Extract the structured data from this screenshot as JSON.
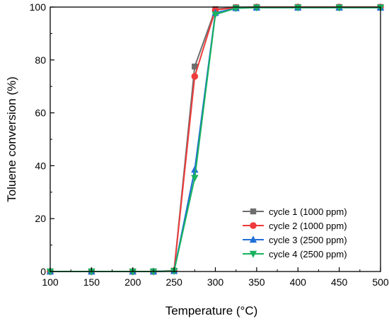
{
  "chart_data": {
    "type": "line",
    "title": "",
    "xlabel": "Temperature (°C)",
    "ylabel": "Toluene conversion (%)",
    "xlim": [
      100,
      500
    ],
    "ylim": [
      0,
      100
    ],
    "xticks": [
      100,
      150,
      200,
      250,
      300,
      350,
      400,
      450,
      500
    ],
    "yticks": [
      0,
      20,
      40,
      60,
      80,
      100
    ],
    "grid": false,
    "legend_position": "bottom-right",
    "x": [
      100,
      150,
      200,
      225,
      250,
      275,
      300,
      325,
      350,
      400,
      450,
      500
    ],
    "series": [
      {
        "name": "cycle 1 (1000 ppm)",
        "color": "#6e6e6e",
        "marker": "square",
        "values": [
          0,
          0,
          0,
          0,
          0.3,
          77.5,
          99.2,
          99.9,
          100,
          100,
          100,
          100
        ]
      },
      {
        "name": "cycle 2 (1000 ppm)",
        "color": "#ef3b3b",
        "marker": "circle",
        "values": [
          0,
          0,
          0,
          0,
          0.3,
          73.8,
          98.9,
          99.8,
          100,
          100,
          100,
          100
        ]
      },
      {
        "name": "cycle 3 (2500 ppm)",
        "color": "#1f6fd6",
        "marker": "triangle-up",
        "values": [
          0,
          0,
          0,
          0,
          0.2,
          38.5,
          97.8,
          99.6,
          99.8,
          99.8,
          99.8,
          99.8
        ]
      },
      {
        "name": "cycle 4 (2500 ppm)",
        "color": "#19b25f",
        "marker": "triangle-down",
        "values": [
          0,
          0,
          0,
          0,
          0.2,
          35.4,
          97.2,
          99.6,
          99.8,
          99.8,
          99.8,
          99.8
        ]
      }
    ]
  }
}
